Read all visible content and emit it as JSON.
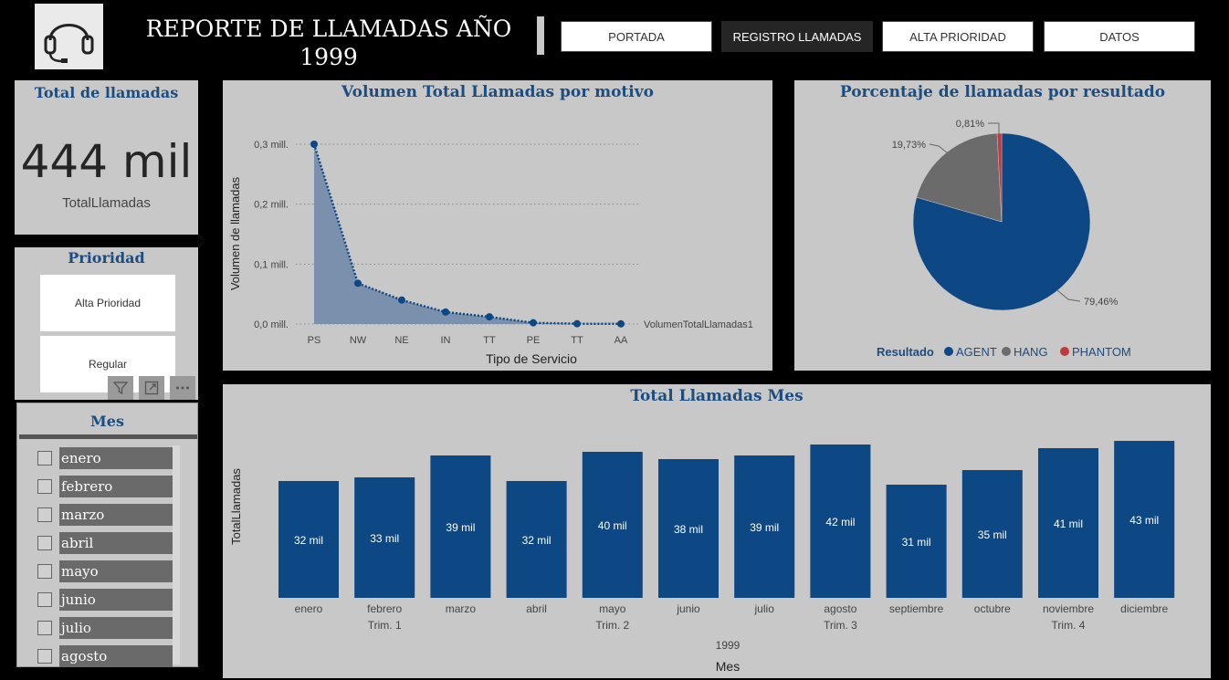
{
  "header": {
    "title_line1": "REPORTE DE LLAMADAS AÑO",
    "title_line2": "1999",
    "nav": [
      "PORTADA",
      "REGISTRO LLAMADAS",
      "ALTA PRIORIDAD",
      "DATOS"
    ],
    "active_nav": "REGISTRO LLAMADAS"
  },
  "kpi": {
    "title": "Total de llamadas",
    "value": "444 mil",
    "label": "TotalLlamadas"
  },
  "prioridad": {
    "title": "Prioridad",
    "options": [
      "Alta Prioridad",
      "Regular"
    ]
  },
  "mes_slicer": {
    "title": "Mes",
    "items": [
      "enero",
      "febrero",
      "marzo",
      "abril",
      "mayo",
      "junio",
      "julio",
      "agosto"
    ]
  },
  "colors": {
    "accent": "#0d4784",
    "hang": "#6b6b6b",
    "phantom": "#c0393f",
    "title": "#1c4d80",
    "area": "#7a90ad"
  },
  "chart_data": [
    {
      "type": "area",
      "title": "Volumen Total Llamadas por motivo",
      "xlabel": "Tipo de Servicio",
      "ylabel": "Volumen de llamadas",
      "categories": [
        "PS",
        "NW",
        "NE",
        "IN",
        "TT",
        "PE",
        "TT",
        "AA"
      ],
      "series": [
        {
          "name": "VolumenTotalLlamadas1",
          "values": [
            0.3,
            0.068,
            0.04,
            0.02,
            0.012,
            0.002,
            0.0005,
            0.0003
          ]
        }
      ],
      "yticks": [
        "0,0 mill.",
        "0,1 mill.",
        "0,2 mill.",
        "0,3 mill."
      ],
      "ylim": [
        0,
        0.3
      ],
      "grid": true
    },
    {
      "type": "pie",
      "title": "Porcentaje de llamadas por resultado",
      "legend_title": "Resultado",
      "slices": [
        {
          "name": "AGENT",
          "value": 79.46,
          "label": "79,46%"
        },
        {
          "name": "HANG",
          "value": 19.73,
          "label": "19,73%"
        },
        {
          "name": "PHANTOM",
          "value": 0.81,
          "label": "0,81%"
        }
      ],
      "legend": "bottom"
    },
    {
      "type": "bar",
      "title": "Total Llamadas Mes",
      "xlabel": "Mes",
      "ylabel": "TotalLlamadas",
      "year_label": "1999",
      "categories": [
        "enero",
        "febrero",
        "marzo",
        "abril",
        "mayo",
        "junio",
        "julio",
        "agosto",
        "septiembre",
        "octubre",
        "noviembre",
        "diciembre"
      ],
      "quarters": [
        "Trim. 1",
        "Trim. 2",
        "Trim. 3",
        "Trim. 4"
      ],
      "values": [
        32,
        33,
        39,
        32,
        40,
        38,
        39,
        42,
        31,
        35,
        41,
        43
      ],
      "data_labels": [
        "32 mil",
        "33 mil",
        "39 mil",
        "32 mil",
        "40 mil",
        "38 mil",
        "39 mil",
        "42 mil",
        "31 mil",
        "35 mil",
        "41 mil",
        "43 mil"
      ],
      "ylim": [
        0,
        43
      ]
    }
  ]
}
